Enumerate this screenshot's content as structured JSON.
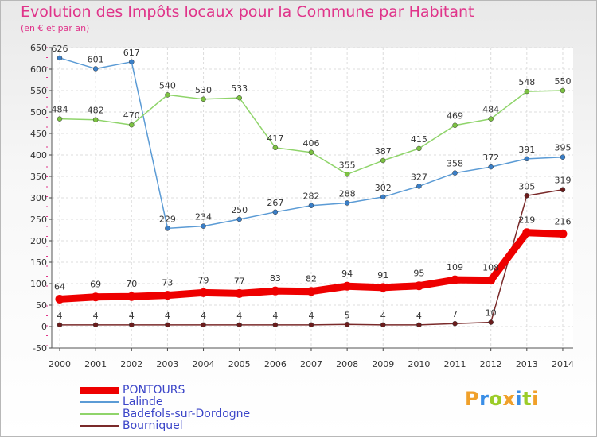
{
  "chart_data": {
    "type": "line",
    "title": "Evolution des Impôts locaux pour la Commune par Habitant",
    "subtitle": "(en € et par an)",
    "xlabel": "",
    "ylabel": "",
    "ylim": [
      -50,
      650
    ],
    "yticks": [
      -50,
      0,
      50,
      100,
      150,
      200,
      250,
      300,
      350,
      400,
      450,
      500,
      550,
      600,
      650
    ],
    "grid": true,
    "legend_position": "bottom-left",
    "categories": [
      "2000",
      "2001",
      "2002",
      "2003",
      "2004",
      "2005",
      "2006",
      "2007",
      "2008",
      "2009",
      "2010",
      "2011",
      "2012",
      "2013",
      "2014"
    ],
    "series": [
      {
        "name": "Lalinde",
        "color": "#5b9bd5",
        "point_color": "#3a7fc8",
        "values": [
          626,
          601,
          617,
          229,
          234,
          250,
          267,
          282,
          288,
          302,
          327,
          358,
          372,
          391,
          395
        ]
      },
      {
        "name": "Badefols-sur-Dordogne",
        "color": "#8fd46a",
        "point_color": "#7cc242",
        "values": [
          484,
          482,
          470,
          540,
          530,
          533,
          417,
          406,
          355,
          387,
          415,
          469,
          484,
          548,
          550
        ]
      },
      {
        "name": "Bourniquel",
        "color": "#7a2a2a",
        "point_color": "#6b1c1c",
        "values": [
          4,
          4,
          4,
          4,
          4,
          4,
          4,
          4,
          5,
          4,
          4,
          7,
          10,
          305,
          319
        ]
      },
      {
        "name": "PONTOURS",
        "color": "#ee0000",
        "point_color": "#ee0000",
        "thick": true,
        "values": [
          64,
          69,
          70,
          73,
          79,
          77,
          83,
          82,
          94,
          91,
          95,
          109,
          108,
          219,
          216
        ]
      }
    ]
  },
  "legend": [
    {
      "name": "PONTOURS",
      "color": "#ee0000",
      "thick": true
    },
    {
      "name": "Lalinde",
      "color": "#5b9bd5"
    },
    {
      "name": "Badefols-sur-Dordogne",
      "color": "#8fd46a"
    },
    {
      "name": "Bourniquel",
      "color": "#7a2a2a"
    }
  ],
  "brand": [
    "P",
    "r",
    "o",
    "x",
    "i",
    "t",
    "i"
  ]
}
